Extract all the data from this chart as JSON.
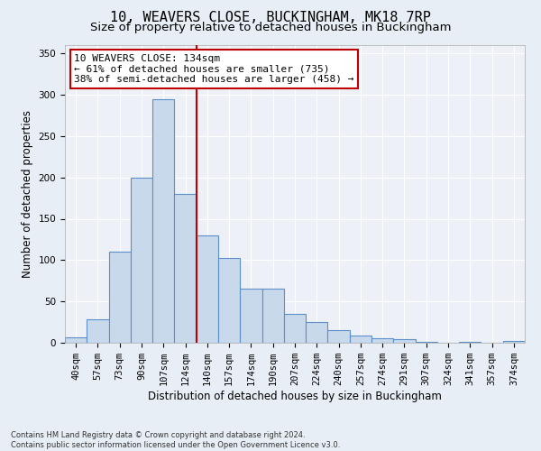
{
  "title": "10, WEAVERS CLOSE, BUCKINGHAM, MK18 7RP",
  "subtitle": "Size of property relative to detached houses in Buckingham",
  "xlabel": "Distribution of detached houses by size in Buckingham",
  "ylabel": "Number of detached properties",
  "footer_line1": "Contains HM Land Registry data © Crown copyright and database right 2024.",
  "footer_line2": "Contains public sector information licensed under the Open Government Licence v3.0.",
  "bin_labels": [
    "40sqm",
    "57sqm",
    "73sqm",
    "90sqm",
    "107sqm",
    "124sqm",
    "140sqm",
    "157sqm",
    "174sqm",
    "190sqm",
    "207sqm",
    "224sqm",
    "240sqm",
    "257sqm",
    "274sqm",
    "291sqm",
    "307sqm",
    "324sqm",
    "341sqm",
    "357sqm",
    "374sqm"
  ],
  "bar_heights": [
    7,
    28,
    110,
    200,
    295,
    180,
    130,
    103,
    66,
    66,
    35,
    25,
    15,
    9,
    5,
    4,
    1,
    0,
    1,
    0,
    2
  ],
  "bar_color": "#c9d9ec",
  "bar_edge_color": "#5b8fc9",
  "vline_x": 5.5,
  "vline_color": "#c00000",
  "annotation_text_line1": "10 WEAVERS CLOSE: 134sqm",
  "annotation_text_line2": "← 61% of detached houses are smaller (735)",
  "annotation_text_line3": "38% of semi-detached houses are larger (458) →",
  "annotation_box_color": "#c00000",
  "annotation_bg": "#ffffff",
  "ylim": [
    0,
    360
  ],
  "yticks": [
    0,
    50,
    100,
    150,
    200,
    250,
    300,
    350
  ],
  "background_color": "#e8eef5",
  "plot_bg_color": "#edf1f7",
  "grid_color": "#ffffff",
  "title_fontsize": 11,
  "subtitle_fontsize": 9.5,
  "axis_label_fontsize": 8.5,
  "tick_fontsize": 7.5,
  "annotation_fontsize": 8
}
